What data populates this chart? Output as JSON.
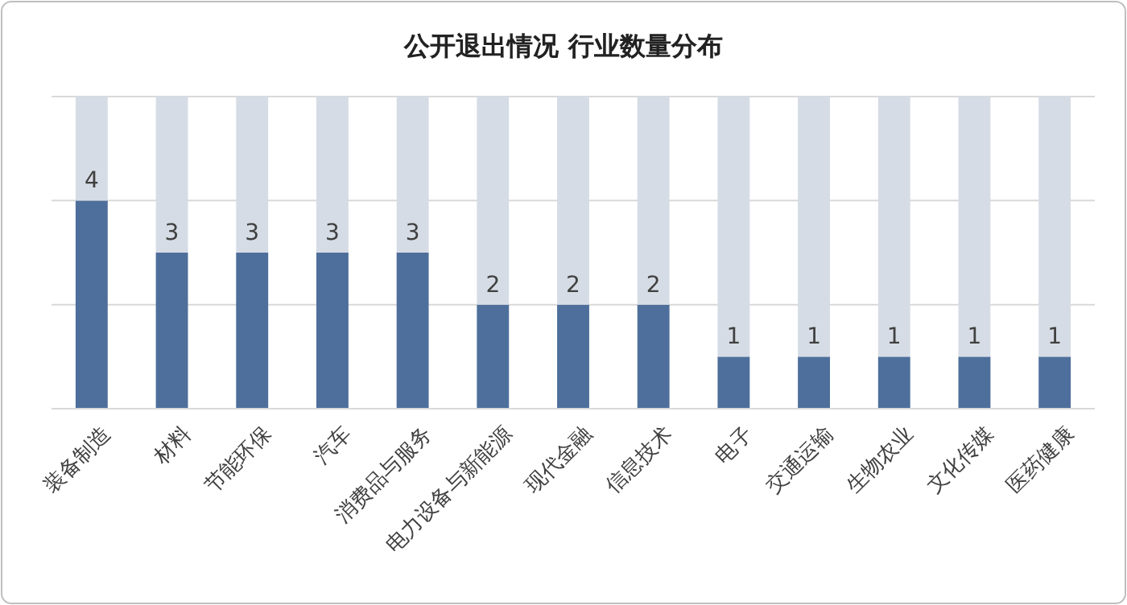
{
  "chart_data": {
    "type": "bar",
    "title": "公开退出情况 行业数量分布",
    "categories": [
      "装备制造",
      "材料",
      "节能环保",
      "汽车",
      "消费品与服务",
      "电力设备与新能源",
      "现代金融",
      "信息技术",
      "电子",
      "交通运输",
      "生物农业",
      "文化传媒",
      "医药健康"
    ],
    "stacked": true,
    "series": [
      {
        "color": "#4e6f9b",
        "values": [
          4,
          3,
          3,
          3,
          3,
          2,
          2,
          2,
          1,
          1,
          1,
          1,
          1
        ],
        "value_labels": [
          "4",
          "3",
          "3",
          "3",
          "3",
          "2",
          "2",
          "2",
          "1",
          "1",
          "1",
          "1",
          "1"
        ]
      },
      {
        "color": "#d6dce5",
        "values": [
          2,
          3,
          3,
          3,
          3,
          4,
          4,
          4,
          5,
          5,
          5,
          5,
          5
        ]
      }
    ],
    "ylim": [
      0,
      6
    ],
    "yticks": [
      {
        "value": 0,
        "label": null
      },
      {
        "value": 2,
        "label": null
      },
      {
        "value": 4,
        "label": null
      },
      {
        "value": 6,
        "label": null
      }
    ],
    "grid": "y",
    "tick_labels": "x"
  }
}
